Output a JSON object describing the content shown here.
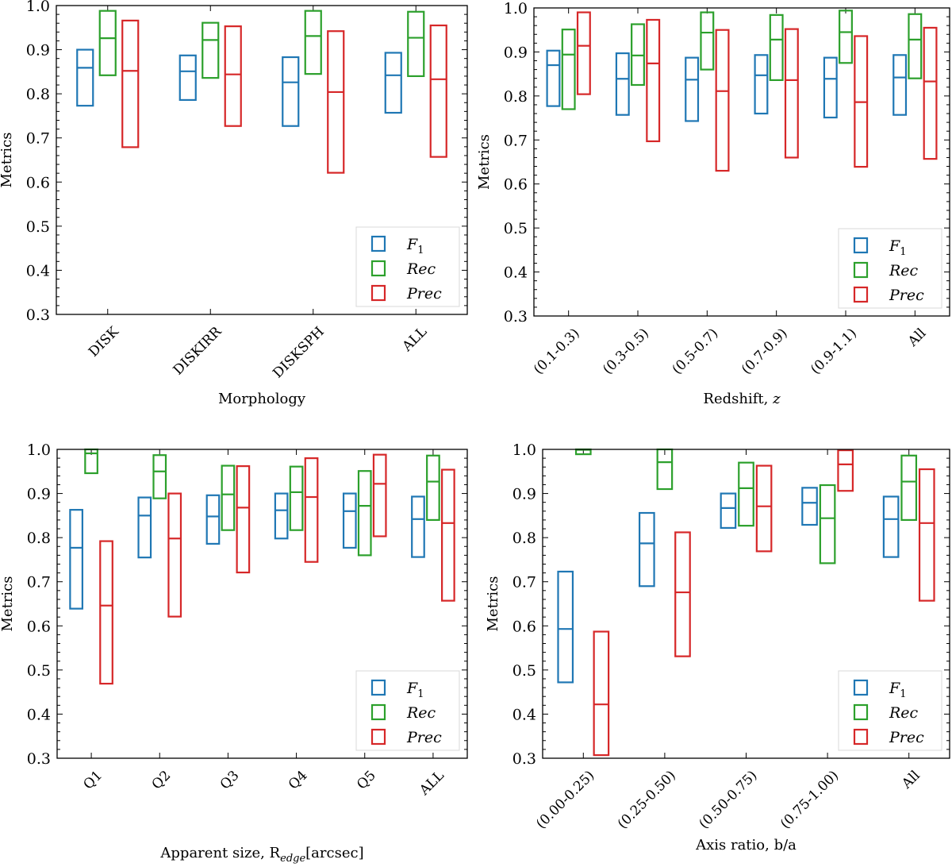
{
  "figure": {
    "series_colors": {
      "F1": "#1f77b4",
      "Rec": "#2ca02c",
      "Prec": "#d62728"
    },
    "legend_labels": {
      "F1": "F",
      "F1_sub": "1",
      "Rec": "Rec",
      "Prec": "Prec"
    }
  },
  "chart_data": [
    {
      "type": "box-range",
      "panel": "top-left",
      "title": "",
      "xlabel": "Morphology",
      "xlabel_sub": "",
      "xlabel_tail": "",
      "ylabel": "Metrics",
      "ylim": [
        0.3,
        1.0
      ],
      "yticks": [
        "0.3",
        "0.4",
        "0.5",
        "0.6",
        "0.7",
        "0.8",
        "0.9",
        "1.0"
      ],
      "grid": false,
      "legend": {
        "position": "bottom-right",
        "entries": [
          "F1",
          "Rec",
          "Prec"
        ]
      },
      "categories": [
        "DISK",
        "DISKIRR",
        "DISKSPH",
        "ALL"
      ],
      "series": [
        {
          "name": "F1",
          "low": [
            0.773,
            0.786,
            0.727,
            0.757
          ],
          "median": [
            0.859,
            0.851,
            0.826,
            0.842
          ],
          "high": [
            0.9,
            0.887,
            0.883,
            0.893
          ]
        },
        {
          "name": "Rec",
          "low": [
            0.842,
            0.836,
            0.845,
            0.84
          ],
          "median": [
            0.926,
            0.922,
            0.931,
            0.927
          ],
          "high": [
            0.988,
            0.961,
            0.988,
            0.986
          ]
        },
        {
          "name": "Prec",
          "low": [
            0.679,
            0.727,
            0.621,
            0.657
          ],
          "median": [
            0.852,
            0.844,
            0.804,
            0.833
          ],
          "high": [
            0.966,
            0.953,
            0.942,
            0.955
          ]
        }
      ]
    },
    {
      "type": "box-range",
      "panel": "top-right",
      "title": "",
      "xlabel": "Redshift,  ",
      "xlabel_sub": "",
      "xlabel_tail": "z",
      "ylabel": "Metrics",
      "ylim": [
        0.3,
        1.0
      ],
      "yticks": [
        "0.3",
        "0.4",
        "0.5",
        "0.6",
        "0.7",
        "0.8",
        "0.9",
        "1.0"
      ],
      "grid": false,
      "legend": {
        "position": "bottom-right",
        "entries": [
          "F1",
          "Rec",
          "Prec"
        ]
      },
      "categories": [
        "(0.1-0.3)",
        "(0.3-0.5)",
        "(0.5-0.7)",
        "(0.7-0.9)",
        "(0.9-1.1)",
        "All"
      ],
      "series": [
        {
          "name": "F1",
          "low": [
            0.777,
            0.757,
            0.743,
            0.76,
            0.751,
            0.757
          ],
          "median": [
            0.87,
            0.839,
            0.837,
            0.847,
            0.839,
            0.842
          ],
          "high": [
            0.903,
            0.897,
            0.887,
            0.893,
            0.887,
            0.893
          ]
        },
        {
          "name": "Rec",
          "low": [
            0.77,
            0.825,
            0.86,
            0.836,
            0.875,
            0.84
          ],
          "median": [
            0.894,
            0.892,
            0.944,
            0.928,
            0.945,
            0.928
          ],
          "high": [
            0.951,
            0.963,
            0.99,
            0.984,
            0.994,
            0.986
          ]
        },
        {
          "name": "Prec",
          "low": [
            0.804,
            0.697,
            0.63,
            0.66,
            0.639,
            0.657
          ],
          "median": [
            0.914,
            0.874,
            0.811,
            0.836,
            0.786,
            0.833
          ],
          "high": [
            0.99,
            0.973,
            0.95,
            0.952,
            0.936,
            0.955
          ]
        }
      ]
    },
    {
      "type": "box-range",
      "panel": "bottom-left",
      "title": "",
      "xlabel": "Apparent size,  R",
      "xlabel_sub": "edge",
      "xlabel_tail": "[arcsec]",
      "ylabel": "Metrics",
      "ylim": [
        0.3,
        1.0
      ],
      "yticks": [
        "0.3",
        "0.4",
        "0.5",
        "0.6",
        "0.7",
        "0.8",
        "0.9",
        "1.0"
      ],
      "grid": false,
      "legend": {
        "position": "bottom-right",
        "entries": [
          "F1",
          "Rec",
          "Prec"
        ]
      },
      "categories": [
        "Q1",
        "Q2",
        "Q3",
        "Q4",
        "Q5",
        "ALL"
      ],
      "series": [
        {
          "name": "F1",
          "low": [
            0.639,
            0.755,
            0.786,
            0.798,
            0.777,
            0.756
          ],
          "median": [
            0.777,
            0.85,
            0.848,
            0.862,
            0.86,
            0.842
          ],
          "high": [
            0.863,
            0.891,
            0.896,
            0.9,
            0.9,
            0.893
          ]
        },
        {
          "name": "Rec",
          "low": [
            0.946,
            0.889,
            0.817,
            0.817,
            0.76,
            0.84
          ],
          "median": [
            0.991,
            0.95,
            0.898,
            0.903,
            0.872,
            0.927
          ],
          "high": [
            1.0,
            0.987,
            0.963,
            0.961,
            0.951,
            0.986
          ]
        },
        {
          "name": "Prec",
          "low": [
            0.469,
            0.621,
            0.721,
            0.745,
            0.803,
            0.657
          ],
          "median": [
            0.646,
            0.798,
            0.868,
            0.892,
            0.922,
            0.833
          ],
          "high": [
            0.792,
            0.9,
            0.962,
            0.98,
            0.988,
            0.954
          ]
        }
      ]
    },
    {
      "type": "box-range",
      "panel": "bottom-right",
      "title": "",
      "xlabel": "Axis ratio,  b/a",
      "xlabel_sub": "",
      "xlabel_tail": "",
      "ylabel": "Metrics",
      "ylim": [
        0.3,
        1.0
      ],
      "yticks": [
        "0.3",
        "0.4",
        "0.5",
        "0.6",
        "0.7",
        "0.8",
        "0.9",
        "1.0"
      ],
      "grid": false,
      "legend": {
        "position": "bottom-right",
        "entries": [
          "F1",
          "Rec",
          "Prec"
        ]
      },
      "categories": [
        "(0.00-0.25)",
        "(0.25-0.50)",
        "(0.50-0.75)",
        "(0.75-1.00)",
        "All"
      ],
      "series": [
        {
          "name": "F1",
          "low": [
            0.472,
            0.69,
            0.822,
            0.829,
            0.756
          ],
          "median": [
            0.593,
            0.787,
            0.867,
            0.879,
            0.842
          ],
          "high": [
            0.723,
            0.856,
            0.9,
            0.913,
            0.893
          ]
        },
        {
          "name": "Rec",
          "low": [
            0.989,
            0.91,
            0.827,
            0.742,
            0.84
          ],
          "median": [
            0.999,
            0.971,
            0.912,
            0.844,
            0.927
          ],
          "high": [
            1.0,
            1.0,
            0.97,
            0.919,
            0.986
          ]
        },
        {
          "name": "Prec",
          "low": [
            0.307,
            0.531,
            0.769,
            0.906,
            0.657
          ],
          "median": [
            0.422,
            0.676,
            0.871,
            0.966,
            0.833
          ],
          "high": [
            0.587,
            0.812,
            0.963,
            0.998,
            0.955
          ]
        }
      ]
    }
  ]
}
